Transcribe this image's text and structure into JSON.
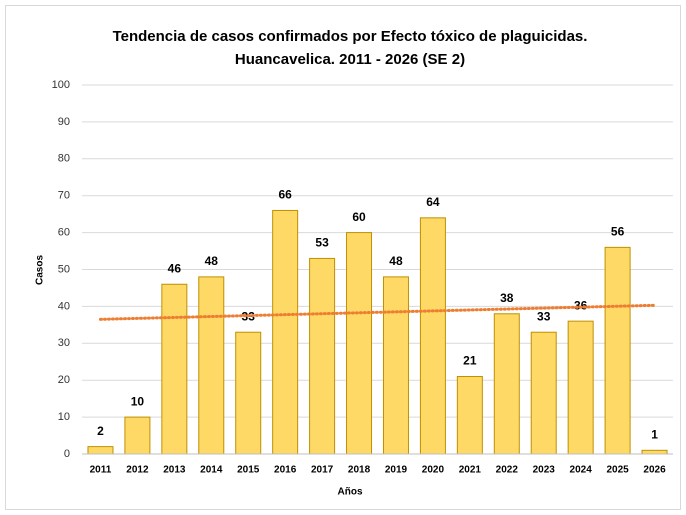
{
  "chart_data": {
    "type": "bar",
    "title_lines": [
      "Tendencia de casos confirmados por Efecto tóxico de plaguicidas.",
      "Huancavelica. 2011 - 2026 (SE 2)"
    ],
    "x_label": "Años",
    "y_label": "Casos",
    "categories": [
      "2011",
      "2012",
      "2013",
      "2014",
      "2015",
      "2016",
      "2017",
      "2018",
      "2019",
      "2020",
      "2021",
      "2022",
      "2023",
      "2024",
      "2025",
      "2026"
    ],
    "values": [
      2,
      10,
      46,
      48,
      33,
      66,
      53,
      60,
      48,
      64,
      21,
      38,
      33,
      36,
      56,
      1
    ],
    "color": "#ffd966",
    "edge_color": "#bf9000",
    "trendline": {
      "color": "#ed7d31",
      "start": 36.5,
      "end": 40.3
    },
    "ylim": [
      0,
      100
    ],
    "yticks": [
      0,
      10,
      20,
      30,
      40,
      50,
      60,
      70,
      80,
      90,
      100
    ],
    "grid": true
  }
}
